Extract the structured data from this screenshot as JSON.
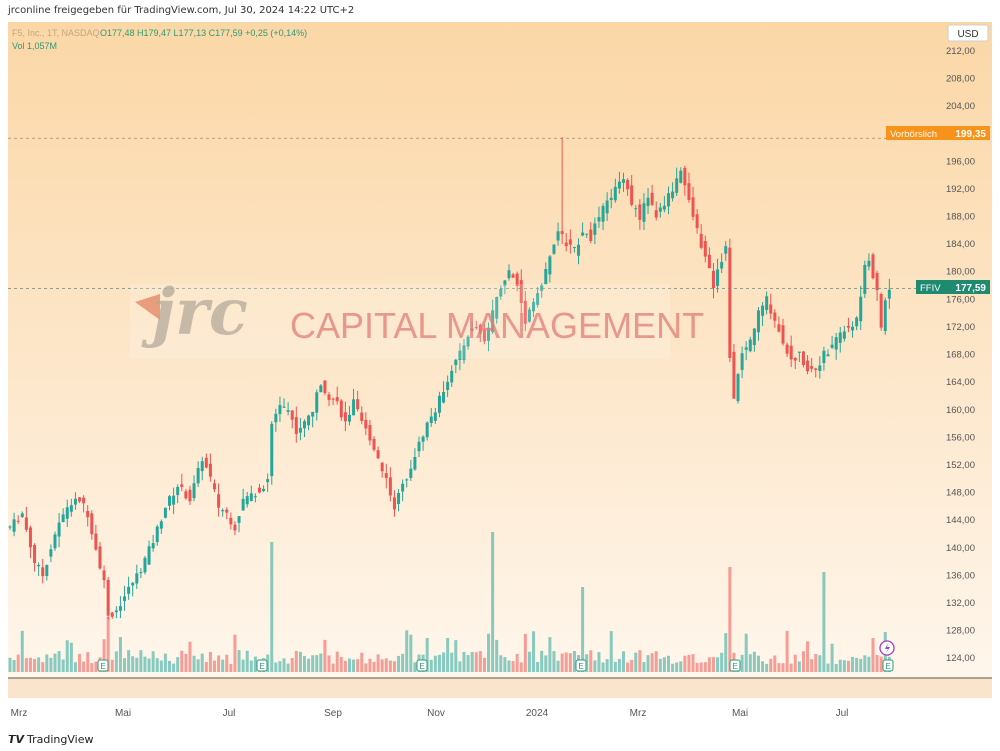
{
  "header": {
    "publisher_line": "jrconline freigegeben für TradingView.com, Jul 30, 2024 14:22 UTC+2"
  },
  "legend": {
    "symbol": "F5, Inc., 1T, NASDAQ",
    "ohlc": "O177,48 H179,47 L177,13 C177,59 +0,25 (+0,14%)",
    "volume": "Vol 1,057M"
  },
  "currency": "USD",
  "watermark": {
    "logo": "jrc",
    "text": "CAPITAL MANAGEMENT"
  },
  "premarket": {
    "label": "Vorbörslich",
    "value": "199,35"
  },
  "last": {
    "label": "FFIV",
    "value": "177,59"
  },
  "footer": {
    "brand": "TradingView",
    "brand_icon": "tv-logo-icon"
  },
  "colors": {
    "up": "#26a69a",
    "down": "#ef5350",
    "premarket": "#f7931a",
    "last": "#1e8a6f"
  },
  "chart_data": {
    "type": "candlestick",
    "x_labels": [
      "Mrz",
      "Mai",
      "Jul",
      "Sep",
      "Nov",
      "2024",
      "Mrz",
      "Mai",
      "Jul"
    ],
    "y_ticks": [
      "124,00",
      "128,00",
      "132,00",
      "136,00",
      "140,00",
      "144,00",
      "148,00",
      "152,00",
      "156,00",
      "160,00",
      "164,00",
      "168,00",
      "172,00",
      "176,00",
      "180,00",
      "184,00",
      "188,00",
      "192,00",
      "196,00",
      "200,00",
      "204,00",
      "208,00",
      "212,00"
    ],
    "ylim": [
      122,
      213
    ],
    "close_path": [
      [
        0,
        143
      ],
      [
        3,
        145
      ],
      [
        6,
        138
      ],
      [
        8,
        136
      ],
      [
        11,
        142
      ],
      [
        14,
        146
      ],
      [
        17,
        147
      ],
      [
        19,
        145
      ],
      [
        21,
        140
      ],
      [
        23,
        135
      ],
      [
        24,
        130
      ],
      [
        26,
        131
      ],
      [
        29,
        134
      ],
      [
        32,
        137
      ],
      [
        35,
        141
      ],
      [
        38,
        146
      ],
      [
        41,
        149
      ],
      [
        44,
        147
      ],
      [
        47,
        153
      ],
      [
        49,
        150
      ],
      [
        51,
        146
      ],
      [
        53,
        145
      ],
      [
        55,
        143
      ],
      [
        57,
        147
      ],
      [
        60,
        148
      ],
      [
        62,
        149
      ],
      [
        63,
        150
      ],
      [
        64,
        158
      ],
      [
        66,
        161
      ],
      [
        68,
        160
      ],
      [
        70,
        157
      ],
      [
        72,
        158
      ],
      [
        74,
        160
      ],
      [
        76,
        164
      ],
      [
        78,
        162
      ],
      [
        80,
        161
      ],
      [
        82,
        158
      ],
      [
        84,
        161
      ],
      [
        86,
        158
      ],
      [
        88,
        156
      ],
      [
        90,
        153
      ],
      [
        92,
        150
      ],
      [
        94,
        146
      ],
      [
        96,
        149
      ],
      [
        98,
        152
      ],
      [
        100,
        155
      ],
      [
        102,
        158
      ],
      [
        104,
        160
      ],
      [
        106,
        163
      ],
      [
        108,
        166
      ],
      [
        110,
        168
      ],
      [
        112,
        171
      ],
      [
        114,
        172
      ],
      [
        116,
        170
      ],
      [
        118,
        174
      ],
      [
        120,
        178
      ],
      [
        122,
        180
      ],
      [
        124,
        178
      ],
      [
        126,
        173
      ],
      [
        128,
        176
      ],
      [
        130,
        178
      ],
      [
        132,
        182
      ],
      [
        134,
        186
      ],
      [
        136,
        184
      ],
      [
        138,
        183
      ],
      [
        140,
        186
      ],
      [
        142,
        185
      ],
      [
        144,
        188
      ],
      [
        146,
        190
      ],
      [
        148,
        192
      ],
      [
        150,
        194
      ],
      [
        152,
        190
      ],
      [
        154,
        188
      ],
      [
        156,
        191
      ],
      [
        158,
        188
      ],
      [
        160,
        190
      ],
      [
        162,
        192
      ],
      [
        164,
        195
      ],
      [
        166,
        190
      ],
      [
        168,
        186
      ],
      [
        170,
        182
      ],
      [
        172,
        178
      ],
      [
        173,
        180
      ],
      [
        174,
        182
      ],
      [
        175,
        184
      ],
      [
        176,
        168
      ],
      [
        177,
        162
      ],
      [
        178,
        165
      ],
      [
        179,
        168
      ],
      [
        181,
        170
      ],
      [
        183,
        174
      ],
      [
        185,
        176
      ],
      [
        187,
        173
      ],
      [
        189,
        170
      ],
      [
        191,
        167
      ],
      [
        193,
        168
      ],
      [
        195,
        166
      ],
      [
        197,
        166
      ],
      [
        199,
        168
      ],
      [
        201,
        169
      ],
      [
        203,
        171
      ],
      [
        205,
        172
      ],
      [
        207,
        173
      ],
      [
        208,
        176
      ],
      [
        209,
        181
      ],
      [
        210,
        182
      ],
      [
        212,
        177
      ],
      [
        213,
        172
      ],
      [
        214,
        176
      ],
      [
        215,
        177.59
      ]
    ],
    "premarket_level": 199.35,
    "last_level": 177.59,
    "spike": {
      "bar": 135,
      "high": 199.5,
      "low": 184
    },
    "earnings_markers": [
      "E",
      "E",
      "E",
      "E",
      "E",
      "E",
      "E",
      "E"
    ],
    "volume_spikes_note": "tall volume bars near Mai, Jul, Nov, 2024, Mai, Jul"
  }
}
